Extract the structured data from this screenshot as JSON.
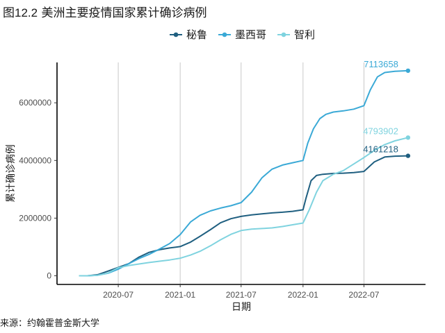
{
  "header": {
    "figure_no": "图12.2",
    "title": "美洲主要疫情国家累计确诊病例"
  },
  "footer": {
    "source": "来源：约翰霍普金斯大学"
  },
  "chart_data": {
    "type": "line",
    "xlabel": "日期",
    "ylabel": "累计确诊病例",
    "x_tick_labels": [
      "2020-07",
      "2021-01",
      "2021-07",
      "2022-01",
      "2022-07"
    ],
    "x_ticks": [
      "2020-07-01",
      "2021-01-01",
      "2021-07-01",
      "2022-01-01",
      "2022-07-01"
    ],
    "y_ticks": [
      0,
      2000000,
      4000000,
      6000000
    ],
    "y_tick_labels": [
      "0",
      "2000000",
      "4000000",
      "6000000"
    ],
    "xlim": [
      "2020-01-01",
      "2022-12-31"
    ],
    "ylim": [
      -300000,
      7400000
    ],
    "grid": "vertical major lines",
    "legend_position": "top",
    "series": [
      {
        "name": "秘鲁",
        "color": "#1f5f80",
        "end_label": "4161218",
        "points": [
          [
            "2020-03-06",
            0
          ],
          [
            "2020-04-01",
            1400
          ],
          [
            "2020-05-01",
            40000
          ],
          [
            "2020-06-01",
            165000
          ],
          [
            "2020-07-01",
            290000
          ],
          [
            "2020-08-01",
            420000
          ],
          [
            "2020-09-01",
            650000
          ],
          [
            "2020-10-01",
            815000
          ],
          [
            "2020-11-01",
            905000
          ],
          [
            "2020-12-01",
            965000
          ],
          [
            "2021-01-01",
            1015000
          ],
          [
            "2021-02-01",
            1170000
          ],
          [
            "2021-03-01",
            1370000
          ],
          [
            "2021-04-01",
            1600000
          ],
          [
            "2021-05-01",
            1840000
          ],
          [
            "2021-06-01",
            1980000
          ],
          [
            "2021-07-01",
            2060000
          ],
          [
            "2021-08-01",
            2110000
          ],
          [
            "2021-09-01",
            2150000
          ],
          [
            "2021-10-01",
            2180000
          ],
          [
            "2021-11-01",
            2205000
          ],
          [
            "2021-12-01",
            2235000
          ],
          [
            "2022-01-01",
            2290000
          ],
          [
            "2022-01-10",
            2700000
          ],
          [
            "2022-01-25",
            3300000
          ],
          [
            "2022-02-10",
            3480000
          ],
          [
            "2022-03-01",
            3520000
          ],
          [
            "2022-04-01",
            3550000
          ],
          [
            "2022-05-01",
            3560000
          ],
          [
            "2022-06-01",
            3580000
          ],
          [
            "2022-07-01",
            3620000
          ],
          [
            "2022-08-01",
            3950000
          ],
          [
            "2022-09-01",
            4120000
          ],
          [
            "2022-10-01",
            4150000
          ],
          [
            "2022-11-09",
            4161218
          ]
        ]
      },
      {
        "name": "墨西哥",
        "color": "#3aa9d6",
        "end_label": "7113658",
        "points": [
          [
            "2020-03-06",
            0
          ],
          [
            "2020-04-01",
            1500
          ],
          [
            "2020-05-01",
            20000
          ],
          [
            "2020-06-01",
            90000
          ],
          [
            "2020-07-01",
            230000
          ],
          [
            "2020-08-01",
            420000
          ],
          [
            "2020-09-01",
            600000
          ],
          [
            "2020-10-01",
            745000
          ],
          [
            "2020-11-01",
            930000
          ],
          [
            "2020-12-01",
            1120000
          ],
          [
            "2021-01-01",
            1430000
          ],
          [
            "2021-02-01",
            1870000
          ],
          [
            "2021-03-01",
            2100000
          ],
          [
            "2021-04-01",
            2250000
          ],
          [
            "2021-05-01",
            2350000
          ],
          [
            "2021-06-01",
            2430000
          ],
          [
            "2021-07-01",
            2540000
          ],
          [
            "2021-08-01",
            2900000
          ],
          [
            "2021-09-01",
            3400000
          ],
          [
            "2021-10-01",
            3700000
          ],
          [
            "2021-11-01",
            3840000
          ],
          [
            "2021-12-01",
            3920000
          ],
          [
            "2022-01-01",
            4000000
          ],
          [
            "2022-01-15",
            4600000
          ],
          [
            "2022-02-01",
            5100000
          ],
          [
            "2022-02-20",
            5450000
          ],
          [
            "2022-03-10",
            5600000
          ],
          [
            "2022-04-01",
            5680000
          ],
          [
            "2022-05-01",
            5720000
          ],
          [
            "2022-06-01",
            5780000
          ],
          [
            "2022-07-01",
            5900000
          ],
          [
            "2022-07-20",
            6450000
          ],
          [
            "2022-08-10",
            6900000
          ],
          [
            "2022-09-01",
            7050000
          ],
          [
            "2022-10-01",
            7095000
          ],
          [
            "2022-11-09",
            7113658
          ]
        ]
      },
      {
        "name": "智利",
        "color": "#7fd3df",
        "end_label": "4793902",
        "points": [
          [
            "2020-03-06",
            0
          ],
          [
            "2020-04-01",
            3000
          ],
          [
            "2020-05-01",
            18000
          ],
          [
            "2020-06-01",
            100000
          ],
          [
            "2020-07-01",
            280000
          ],
          [
            "2020-08-01",
            355000
          ],
          [
            "2020-09-01",
            410000
          ],
          [
            "2020-10-01",
            460000
          ],
          [
            "2020-11-01",
            505000
          ],
          [
            "2020-12-01",
            550000
          ],
          [
            "2021-01-01",
            610000
          ],
          [
            "2021-02-01",
            720000
          ],
          [
            "2021-03-01",
            850000
          ],
          [
            "2021-04-01",
            1040000
          ],
          [
            "2021-05-01",
            1250000
          ],
          [
            "2021-06-01",
            1440000
          ],
          [
            "2021-07-01",
            1570000
          ],
          [
            "2021-08-01",
            1620000
          ],
          [
            "2021-09-01",
            1640000
          ],
          [
            "2021-10-01",
            1660000
          ],
          [
            "2021-11-01",
            1710000
          ],
          [
            "2021-12-01",
            1770000
          ],
          [
            "2022-01-01",
            1830000
          ],
          [
            "2022-01-20",
            2300000
          ],
          [
            "2022-02-10",
            2900000
          ],
          [
            "2022-03-01",
            3300000
          ],
          [
            "2022-04-01",
            3520000
          ],
          [
            "2022-05-01",
            3650000
          ],
          [
            "2022-06-01",
            3880000
          ],
          [
            "2022-07-01",
            4100000
          ],
          [
            "2022-08-01",
            4350000
          ],
          [
            "2022-09-01",
            4550000
          ],
          [
            "2022-10-01",
            4680000
          ],
          [
            "2022-11-09",
            4793902
          ]
        ]
      }
    ]
  }
}
